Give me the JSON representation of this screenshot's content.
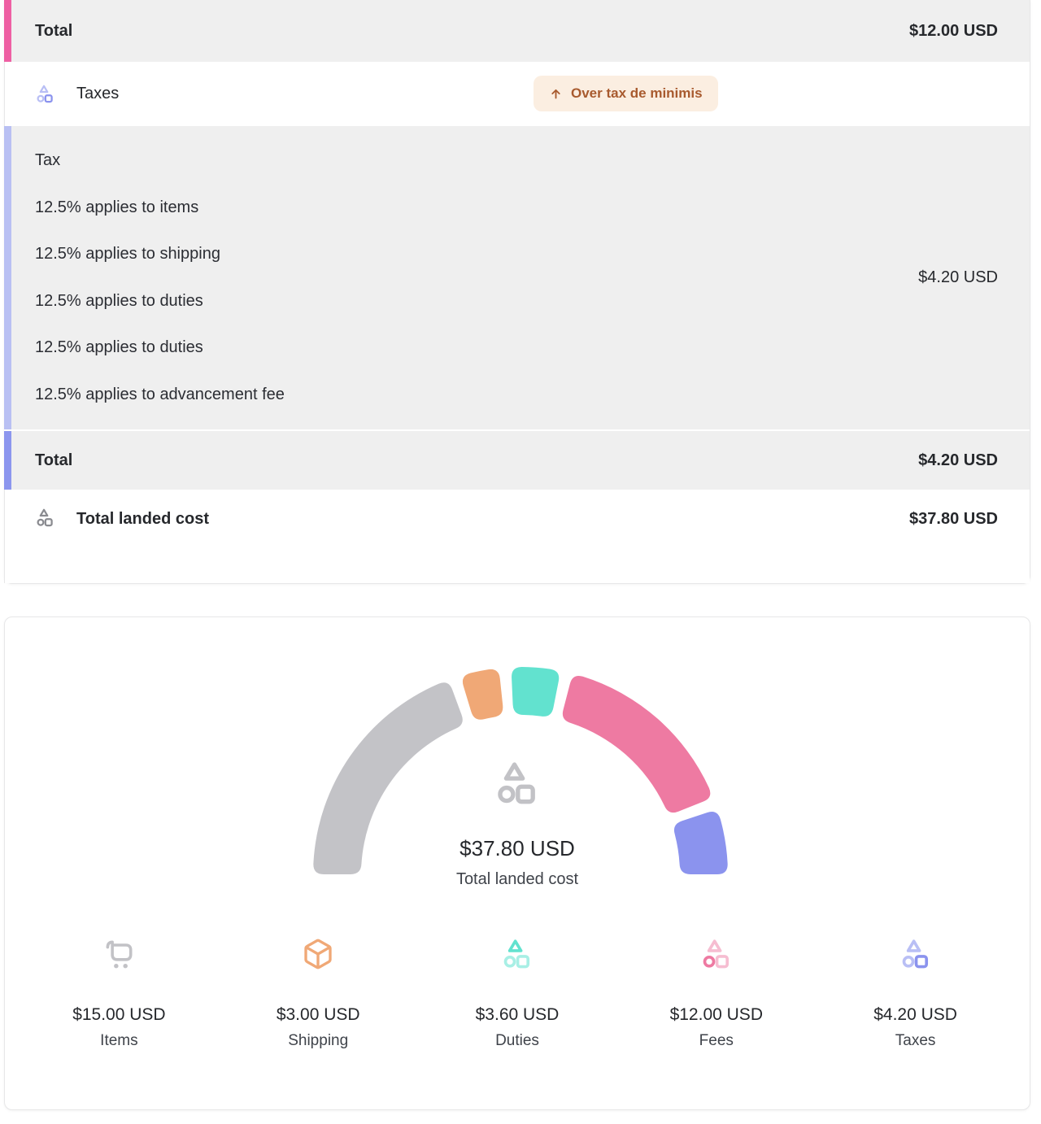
{
  "breakdown": {
    "fees_total": {
      "label": "Total",
      "value": "$12.00 USD"
    },
    "taxes": {
      "label": "Taxes",
      "badge": "Over tax de minimis"
    },
    "tax_detail": {
      "lines": [
        "Tax",
        "12.5% applies to items",
        "12.5% applies to shipping",
        "12.5% applies to duties",
        "12.5% applies to duties",
        "12.5% applies to advancement fee"
      ],
      "value": "$4.20 USD"
    },
    "tax_total": {
      "label": "Total",
      "value": "$4.20 USD"
    },
    "landed_cost": {
      "label": "Total landed cost",
      "value": "$37.80 USD"
    }
  },
  "chart_data": {
    "type": "pie",
    "variant": "half-donut-gauge",
    "title": "Total landed cost",
    "center_value": "$37.80 USD",
    "center_label": "Total landed cost",
    "total": 37.8,
    "currency": "USD",
    "legend_position": "bottom",
    "segments": [
      {
        "label": "Items",
        "value": 15.0,
        "display": "$15.00 USD",
        "color": "#c3c3c7"
      },
      {
        "label": "Shipping",
        "value": 3.0,
        "display": "$3.00 USD",
        "color": "#f0a876"
      },
      {
        "label": "Duties",
        "value": 3.6,
        "display": "$3.60 USD",
        "color": "#62e2cf"
      },
      {
        "label": "Fees",
        "value": 12.0,
        "display": "$12.00 USD",
        "color": "#ee7aa2"
      },
      {
        "label": "Taxes",
        "value": 4.2,
        "display": "$4.20 USD",
        "color": "#8b93ee"
      }
    ]
  },
  "colors": {
    "accent_pink": "#ee5fa3",
    "tax_border_light": "#b9c0f3",
    "tax_border_dark": "#8c96ee",
    "badge_bg": "#fbeee1",
    "badge_text": "#a85a2e",
    "row_gray_bg": "#efefef",
    "seg_items": "#c3c3c7",
    "seg_shipping": "#f0a876",
    "seg_duties": "#62e2cf",
    "seg_fees": "#ee7aa2",
    "seg_taxes": "#8b93ee",
    "duties_light": "#a8efe5",
    "fees_light": "#f6bdd1",
    "taxes_light": "#b9bff5",
    "icon_gray": "#8a8b90",
    "logo_gray": "#c2c2c6"
  }
}
